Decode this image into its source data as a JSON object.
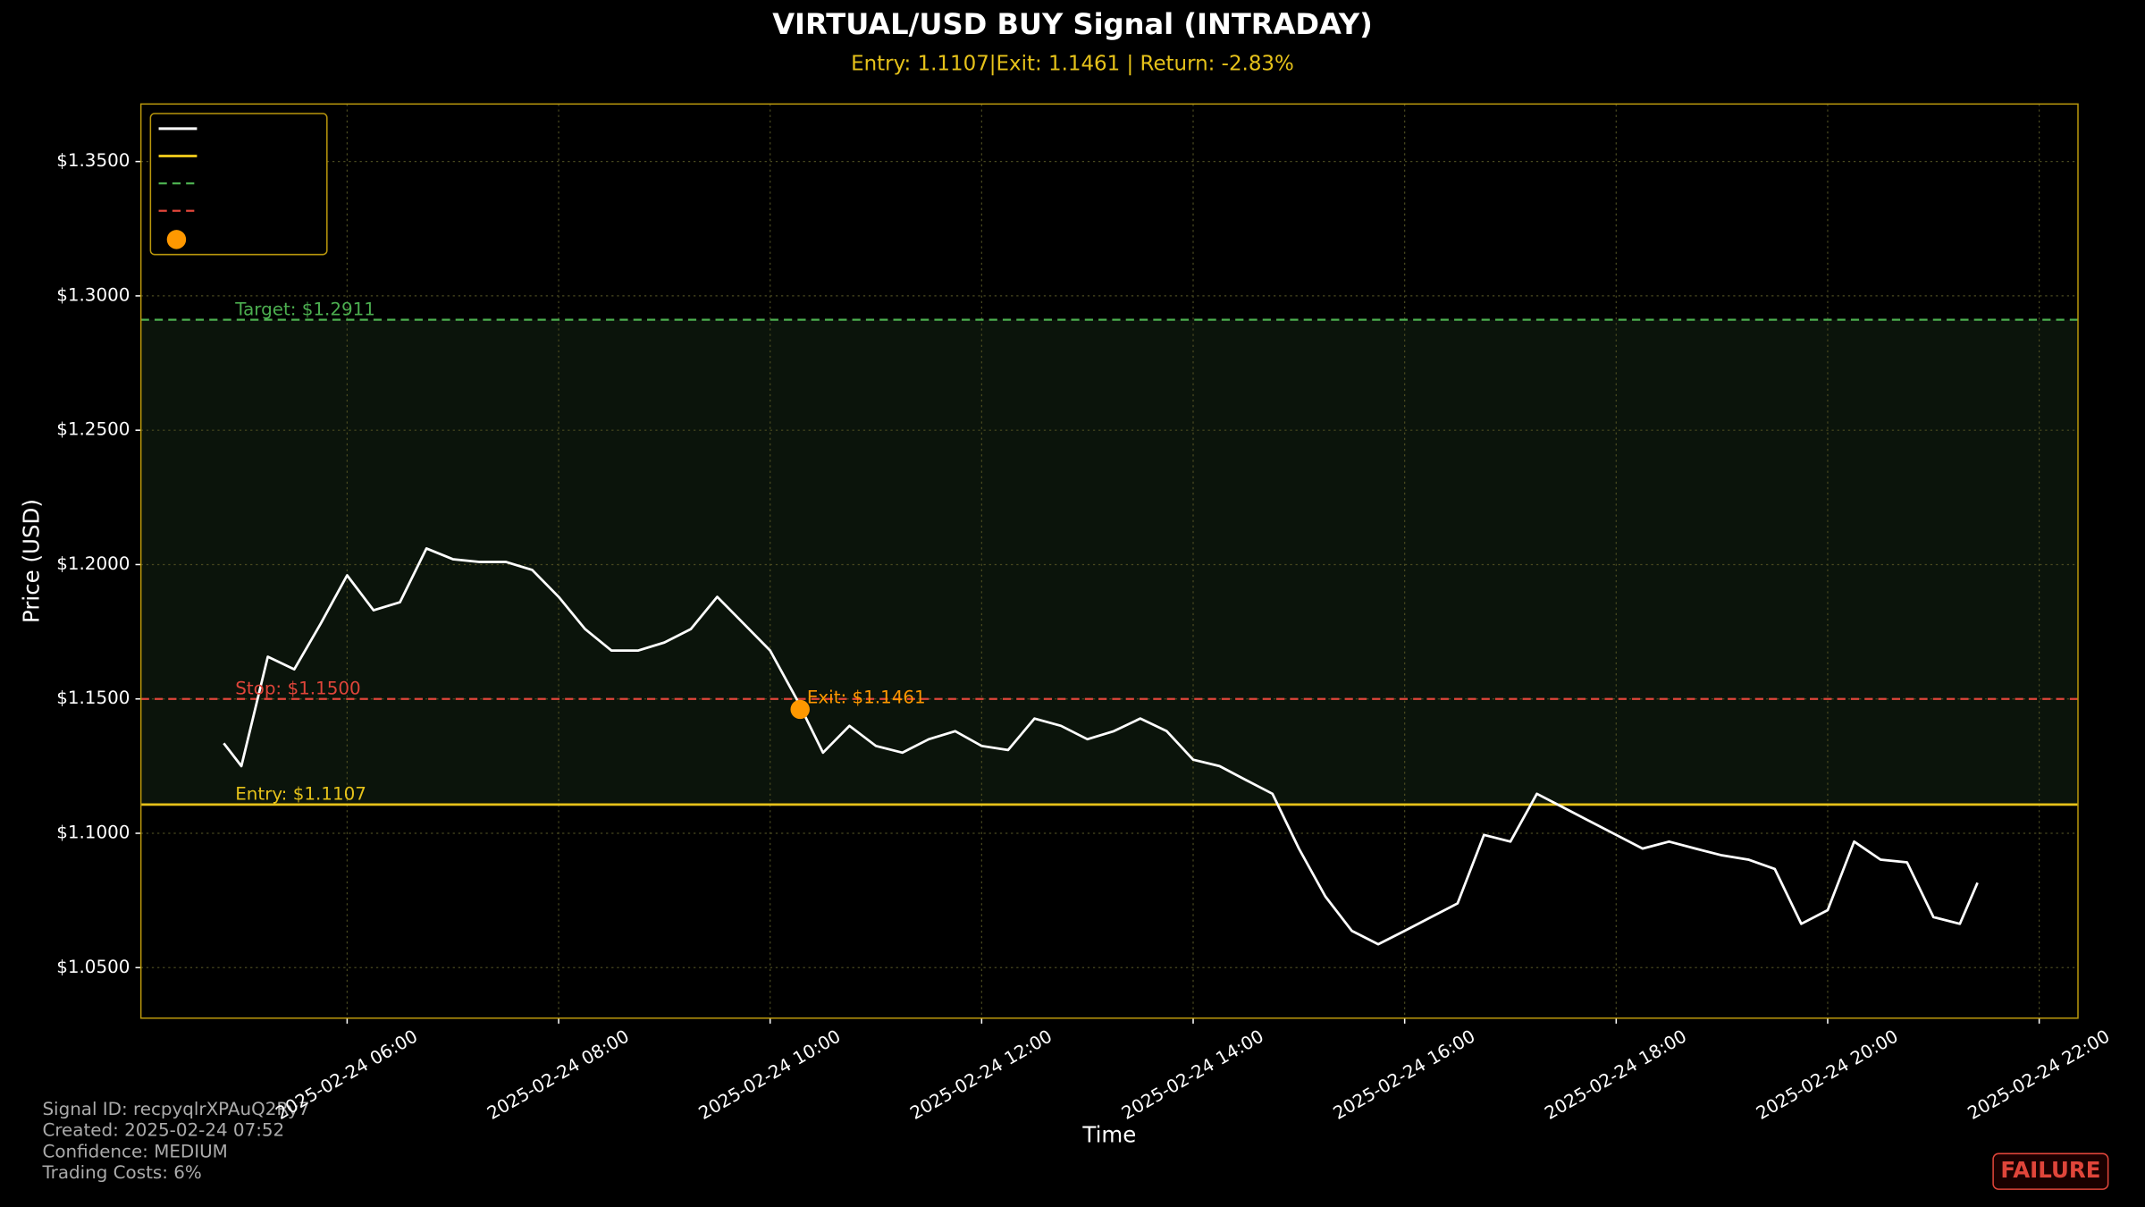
{
  "chart_data": {
    "type": "line",
    "title": "VIRTUAL/USD BUY Signal (INTRADAY)",
    "subtitle": "Entry: 1.1107|Exit: 1.1461 | Return: -2.83%",
    "x_label": "Time",
    "y_label": "Price (USD)",
    "x": [
      "2025-02-24 04:50",
      "2025-02-24 05:00",
      "2025-02-24 05:15",
      "2025-02-24 05:30",
      "2025-02-24 05:45",
      "2025-02-24 06:00",
      "2025-02-24 06:15",
      "2025-02-24 06:30",
      "2025-02-24 06:45",
      "2025-02-24 07:00",
      "2025-02-24 07:15",
      "2025-02-24 07:30",
      "2025-02-24 07:45",
      "2025-02-24 08:00",
      "2025-02-24 08:15",
      "2025-02-24 08:30",
      "2025-02-24 08:45",
      "2025-02-24 09:00",
      "2025-02-24 09:15",
      "2025-02-24 09:30",
      "2025-02-24 09:45",
      "2025-02-24 10:00",
      "2025-02-24 10:15",
      "2025-02-24 10:30",
      "2025-02-24 10:45",
      "2025-02-24 11:00",
      "2025-02-24 11:15",
      "2025-02-24 11:30",
      "2025-02-24 11:45",
      "2025-02-24 12:00",
      "2025-02-24 12:15",
      "2025-02-24 12:30",
      "2025-02-24 12:45",
      "2025-02-24 13:00",
      "2025-02-24 13:15",
      "2025-02-24 13:30",
      "2025-02-24 13:45",
      "2025-02-24 14:00",
      "2025-02-24 14:15",
      "2025-02-24 14:30",
      "2025-02-24 14:45",
      "2025-02-24 15:00",
      "2025-02-24 15:15",
      "2025-02-24 15:30",
      "2025-02-24 15:45",
      "2025-02-24 16:00",
      "2025-02-24 16:15",
      "2025-02-24 16:30",
      "2025-02-24 16:45",
      "2025-02-24 17:00",
      "2025-02-24 17:15",
      "2025-02-24 17:30",
      "2025-02-24 17:45",
      "2025-02-24 18:00",
      "2025-02-24 18:15",
      "2025-02-24 18:30",
      "2025-02-24 18:45",
      "2025-02-24 19:00",
      "2025-02-24 19:15",
      "2025-02-24 19:30",
      "2025-02-24 19:45",
      "2025-02-24 20:00",
      "2025-02-24 20:15",
      "2025-02-24 20:30",
      "2025-02-24 20:45",
      "2025-02-24 21:00",
      "2025-02-24 21:15",
      "2025-02-24 21:25"
    ],
    "series": [
      {
        "color": "#ffffff",
        "values": [
          1.1335,
          1.125,
          1.1657,
          1.161,
          1.178,
          1.196,
          1.183,
          1.186,
          1.206,
          1.202,
          1.201,
          1.201,
          1.198,
          1.188,
          1.176,
          1.168,
          1.168,
          1.171,
          1.176,
          1.188,
          1.178,
          1.168,
          1.15,
          1.13,
          1.14,
          1.1325,
          1.13,
          1.135,
          1.138,
          1.1325,
          1.131,
          1.1427,
          1.14,
          1.135,
          1.138,
          1.1427,
          1.138,
          1.1274,
          1.125,
          1.1198,
          1.1147,
          1.0943,
          1.0765,
          1.0637,
          1.0587,
          1.0637,
          1.0688,
          1.0739,
          1.0994,
          1.0969,
          1.1147,
          1.1096,
          1.1045,
          1.0994,
          1.0943,
          1.0969,
          1.0943,
          1.0918,
          1.0902,
          1.0867,
          1.0663,
          1.0714,
          1.0969,
          1.0902,
          1.0892,
          1.0688,
          1.0663,
          1.0816
        ]
      }
    ],
    "levels": [
      {
        "label": "Target: $1.2911",
        "value": 1.2911,
        "color": "#4caf50",
        "dashed": true
      },
      {
        "label": "Stop: $1.1500",
        "value": 1.15,
        "color": "#e0453a",
        "dashed": true
      },
      {
        "label": "Entry: $1.1107",
        "value": 1.1107,
        "color": "#e6c21a",
        "dashed": false
      }
    ],
    "exit": {
      "x": "2025-02-24 10:17",
      "value": 1.1461,
      "label": "Exit: $1.1461",
      "color": "#ff9800"
    },
    "xlim": [
      "2025-02-24 04:03",
      "2025-02-24 22:22"
    ],
    "xticks": [
      "2025-02-24 06:00",
      "2025-02-24 08:00",
      "2025-02-24 10:00",
      "2025-02-24 12:00",
      "2025-02-24 14:00",
      "2025-02-24 16:00",
      "2025-02-24 18:00",
      "2025-02-24 20:00",
      "2025-02-24 22:00"
    ],
    "ylim": [
      1.0312,
      1.3714
    ],
    "yticks": [
      {
        "value": 1.05,
        "label": "$1.0500"
      },
      {
        "value": 1.1,
        "label": "$1.1000"
      },
      {
        "value": 1.15,
        "label": "$1.1500"
      },
      {
        "value": 1.2,
        "label": "$1.2000"
      },
      {
        "value": 1.25,
        "label": "$1.2500"
      },
      {
        "value": 1.3,
        "label": "$1.3000"
      },
      {
        "value": 1.35,
        "label": "$1.3500"
      }
    ],
    "grid": true
  },
  "info_lines": [
    "Signal ID: recpyqlrXPAuQ2Ry7",
    "Created: 2025-02-24 07:52",
    "Confidence: MEDIUM",
    "Trading Costs: 6%"
  ],
  "badge": "FAILURE"
}
